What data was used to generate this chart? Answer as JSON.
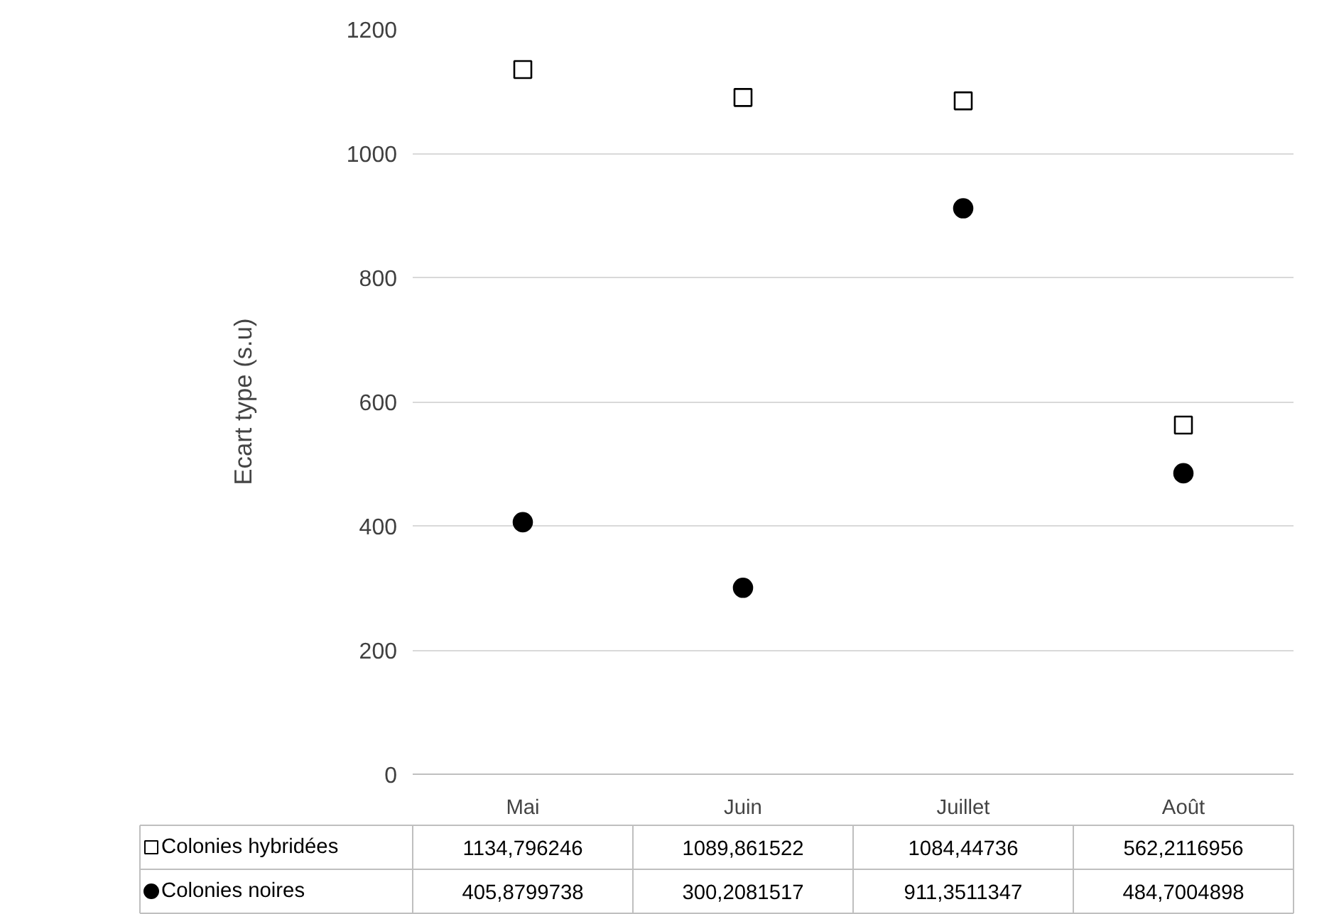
{
  "chart_data": {
    "type": "scatter",
    "ylabel": "Ecart type (s.u)",
    "categories": [
      "Mai",
      "Juin",
      "Juillet",
      "Août"
    ],
    "series": [
      {
        "name": "Colonies hybridées",
        "color": "#000000",
        "marker": "square",
        "values": [
          1134.796246,
          1089.861522,
          1084.44736,
          562.2116956
        ],
        "value_labels": [
          "1134,796246",
          "1089,861522",
          "1084,44736",
          "562,2116956"
        ]
      },
      {
        "name": "Colonies noires",
        "color": "#000000",
        "marker": "circle",
        "values": [
          405.8799738,
          300.2081517,
          911.3511347,
          484.7004898
        ],
        "value_labels": [
          "405,8799738",
          "300,2081517",
          "911,3511347",
          "484,7004898"
        ]
      }
    ],
    "ylim": [
      0,
      1200
    ],
    "yticks": [
      0,
      200,
      400,
      600,
      800,
      1000,
      1200
    ],
    "grid": "y",
    "legend": "bottom left"
  }
}
